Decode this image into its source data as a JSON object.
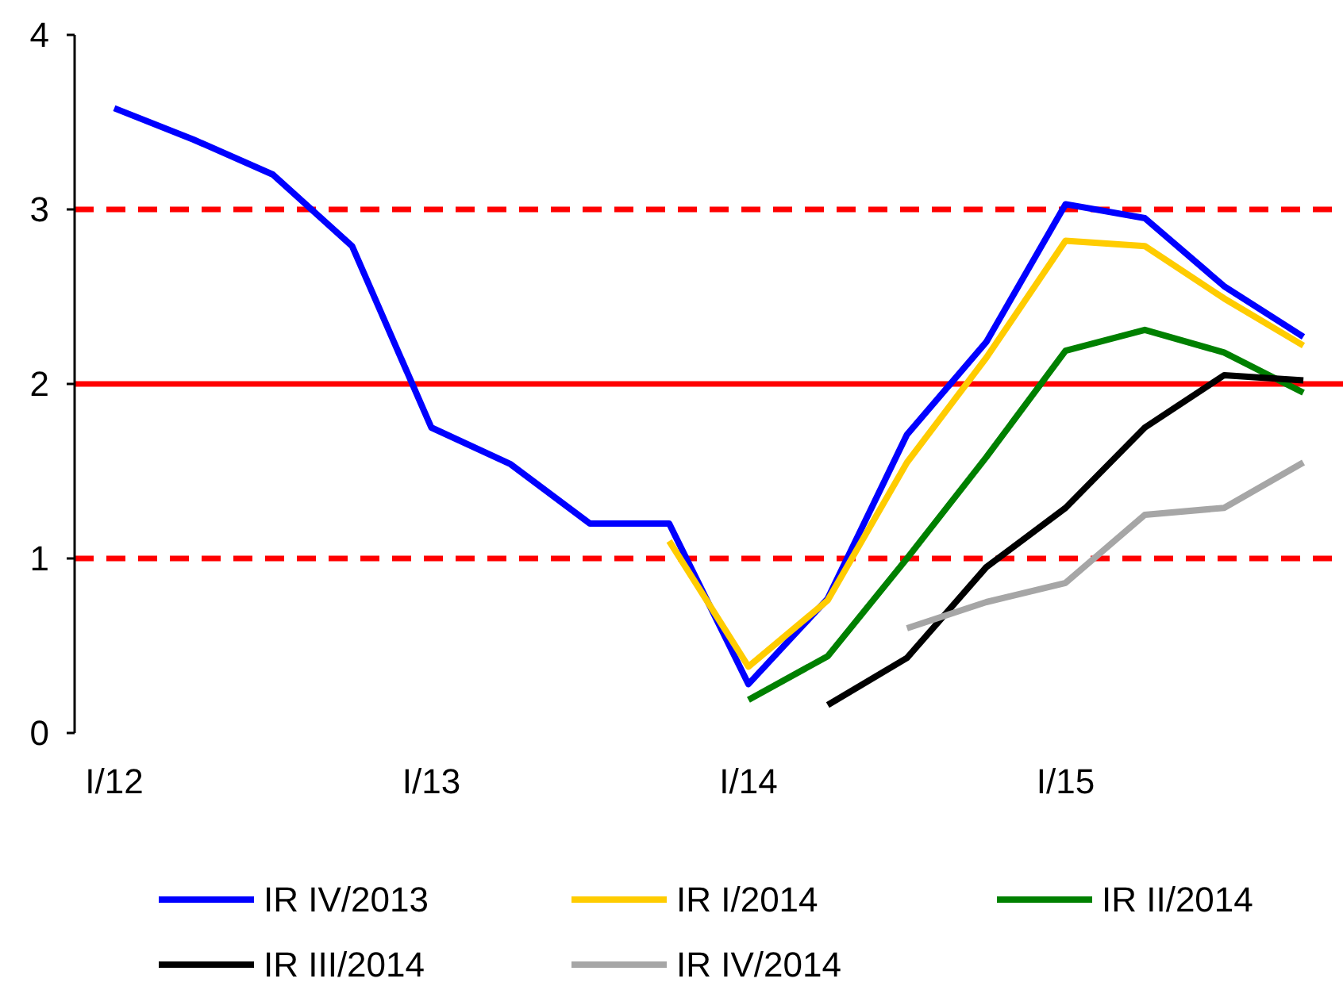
{
  "chart_data": {
    "type": "line",
    "categories": [
      "I/12",
      null,
      null,
      null,
      "I/13",
      null,
      null,
      null,
      "I/14",
      null,
      null,
      null,
      "I/15",
      null,
      null,
      null
    ],
    "series": [
      {
        "name": "IR IV/2013",
        "color": "#0000ff",
        "values": [
          3.58,
          3.4,
          3.2,
          2.79,
          1.75,
          1.54,
          1.2,
          1.2,
          0.28,
          0.77,
          1.71,
          2.24,
          3.03,
          2.95,
          2.56,
          2.27
        ]
      },
      {
        "name": "IR I/2014",
        "color": "#ffcc00",
        "values": [
          null,
          null,
          null,
          null,
          null,
          null,
          null,
          1.1,
          0.38,
          0.76,
          1.55,
          2.15,
          2.82,
          2.79,
          2.49,
          2.22
        ]
      },
      {
        "name": "IR II/2014",
        "color": "#008000",
        "values": [
          null,
          null,
          null,
          null,
          null,
          null,
          null,
          null,
          0.19,
          0.44,
          1.0,
          1.58,
          2.19,
          2.31,
          2.18,
          1.95
        ]
      },
      {
        "name": "IR III/2014",
        "color": "#000000",
        "values": [
          null,
          null,
          null,
          null,
          null,
          null,
          null,
          null,
          null,
          0.16,
          0.43,
          0.95,
          1.29,
          1.75,
          2.05,
          2.02
        ]
      },
      {
        "name": "IR IV/2014",
        "color": "#a6a6a6",
        "values": [
          null,
          null,
          null,
          null,
          null,
          null,
          null,
          null,
          null,
          null,
          0.6,
          0.75,
          0.86,
          1.25,
          1.29,
          1.55
        ]
      }
    ],
    "ylim": [
      0,
      4
    ],
    "yticks": [
      0,
      1,
      2,
      3,
      4
    ],
    "grid": false,
    "legend": "bottom",
    "line_style": "solid",
    "ref_lines": [
      {
        "axis": "y",
        "value": 3,
        "color": "#ff0000",
        "line_style": "dashed"
      },
      {
        "axis": "y",
        "value": 2,
        "color": "#ff0000",
        "line_style": "solid"
      },
      {
        "axis": "y",
        "value": 1,
        "color": "#ff0000",
        "line_style": "dashed"
      }
    ]
  }
}
